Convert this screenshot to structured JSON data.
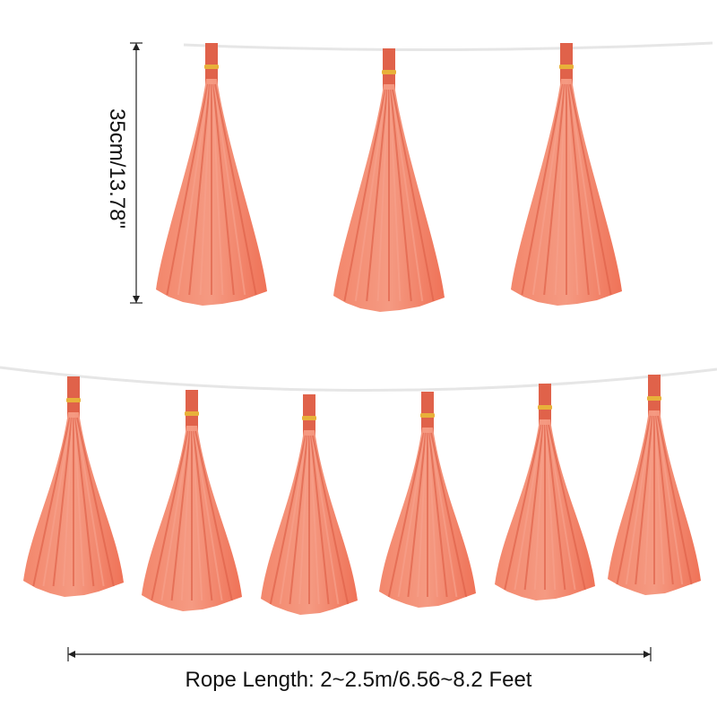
{
  "product": {
    "tassel_color": "#f07a60",
    "tassel_highlight": "#f6a08a",
    "tassel_shadow": "#e0624a",
    "clip_color": "#e8b13a",
    "rope_color": "#e4e4e4",
    "top_row_count": 3,
    "bottom_row_count": 6
  },
  "dimensions": {
    "height_label": "35cm/13.78\"",
    "rope_label": "Rope Length: 2~2.5m/6.56~8.2 Feet"
  }
}
